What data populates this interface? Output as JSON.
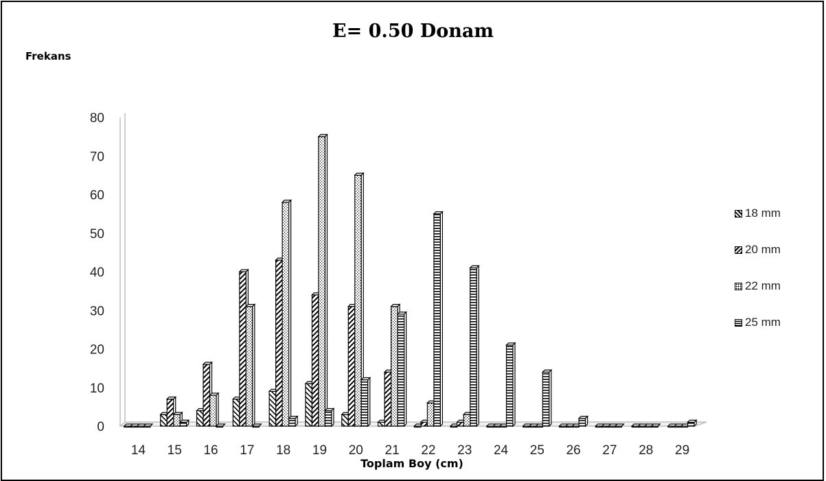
{
  "chart_data": {
    "type": "bar",
    "title": "E= 0.50 Donam",
    "xlabel": "Toplam Boy (cm)",
    "ylabel": "Frekans",
    "categories": [
      "14",
      "15",
      "16",
      "17",
      "18",
      "19",
      "20",
      "21",
      "22",
      "23",
      "24",
      "25",
      "26",
      "27",
      "28",
      "29"
    ],
    "series": [
      {
        "name": "18 mm",
        "pattern": "diag-down",
        "values": [
          0,
          3,
          4,
          7,
          9,
          11,
          3,
          1,
          0,
          0,
          0,
          0,
          0,
          0,
          0,
          0
        ]
      },
      {
        "name": "20 mm",
        "pattern": "diag-up",
        "values": [
          0,
          7,
          16,
          40,
          43,
          34,
          31,
          14,
          1,
          1,
          0,
          0,
          0,
          0,
          0,
          0
        ]
      },
      {
        "name": "22 mm",
        "pattern": "dots",
        "values": [
          0,
          3,
          8,
          31,
          58,
          75,
          65,
          31,
          6,
          3,
          0,
          0,
          0,
          0,
          0,
          0
        ]
      },
      {
        "name": "25 mm",
        "pattern": "hstripes",
        "values": [
          0,
          1,
          0,
          0,
          2,
          4,
          12,
          29,
          55,
          41,
          21,
          14,
          2,
          0,
          0,
          1
        ]
      }
    ],
    "yticks": [
      "0",
      "10",
      "20",
      "30",
      "40",
      "50",
      "60",
      "70",
      "80"
    ],
    "ylim": [
      0,
      80
    ],
    "legend_position": "right",
    "grid": false
  }
}
